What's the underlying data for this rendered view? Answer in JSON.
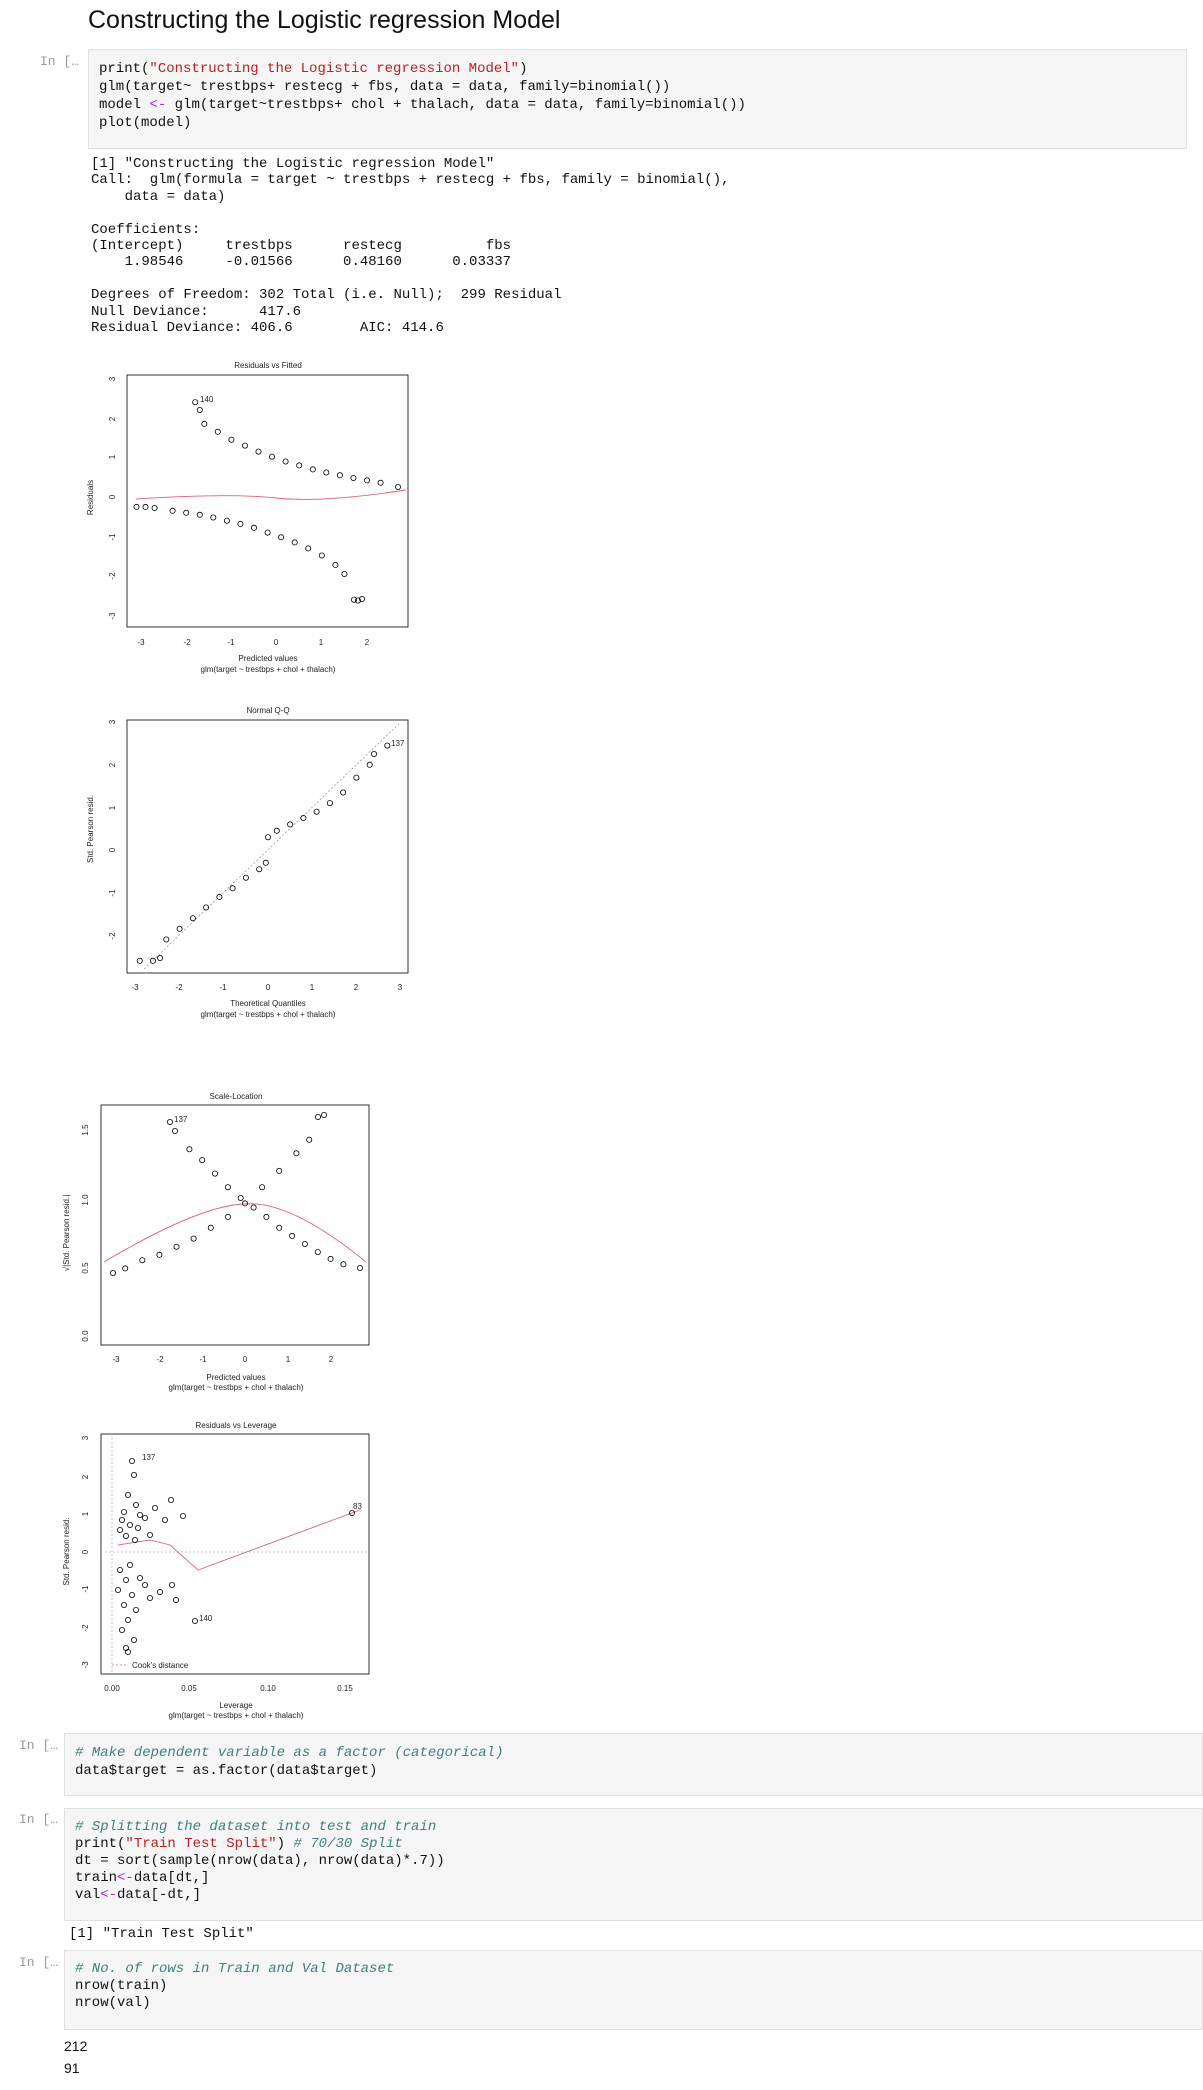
{
  "header": {
    "title": "Constructing the Logistic regression Model"
  },
  "cells": [
    {
      "prompt": "In […",
      "lines": [
        [
          "print(",
          "\"Constructing the Logistic regression Model\"",
          ")"
        ],
        [
          "glm(target~ trestbps+ restecg + fbs, data = data, family=binomial())"
        ],
        [
          "model ",
          "<-",
          " glm(target~trestbps+ chol + thalach, data = data, family=binomial())"
        ],
        [
          "plot(model)"
        ]
      ],
      "output": [
        "[1] \"Constructing the Logistic regression Model\"",
        "Call:  glm(formula = target ~ trestbps + restecg + fbs, family = binomial(),",
        "    data = data)",
        "",
        "Coefficients:",
        "(Intercept)     trestbps      restecg          fbs  ",
        "    1.98546     -0.01566      0.48160      0.03337  ",
        "",
        "Degrees of Freedom: 302 Total (i.e. Null);  299 Residual",
        "Null Deviance:\t    417.6 ",
        "Residual Deviance: 406.6 \tAIC: 414.6"
      ]
    },
    {
      "prompt": "In […",
      "lines": [
        [
          "# Make dependent variable as a factor (categorical)"
        ],
        [
          "data$target = as.factor(data$target)"
        ]
      ],
      "output": []
    },
    {
      "prompt": "In […",
      "lines": [
        [
          "# Splitting the dataset into test and train"
        ],
        [
          "print(",
          "\"Train Test Split\"",
          ") ",
          "# 70/30 Split"
        ],
        [
          "dt = sort(sample(nrow(data), nrow(data)*.7))"
        ],
        [
          "train",
          "<-",
          "data[dt,]"
        ],
        [
          "val",
          "<-",
          "data[-dt,]"
        ]
      ],
      "output": [
        "[1] \"Train Test Split\""
      ]
    },
    {
      "prompt": "In […",
      "lines": [
        [
          "# No. of rows in Train and Val Dataset"
        ],
        [
          "nrow(train)"
        ],
        [
          "nrow(val)"
        ]
      ],
      "output": [
        "212",
        "91"
      ]
    }
  ],
  "plots": [
    {
      "title": "Residuals vs Fitted",
      "xticks": [
        "-3",
        "-2",
        "-1",
        "0",
        "1",
        "2"
      ],
      "yticks": [
        "3",
        "2",
        "1",
        "0",
        "-1",
        "-2",
        "-3"
      ],
      "xlabel": "Predicted values",
      "caption": "glm(target ~ trestbps + chol + thalach)",
      "ylabel": "Residuals",
      "annotations": [
        "140"
      ]
    },
    {
      "title": "Normal Q-Q",
      "xticks": [
        "-3",
        "-2",
        "-1",
        "0",
        "1",
        "2",
        "3"
      ],
      "yticks": [
        "3",
        "2",
        "1",
        "0",
        "-1",
        "-2"
      ],
      "xlabel": "Theoretical Quantiles",
      "caption": "glm(target ~ trestbps + chol + thalach)",
      "ylabel": "Std. Pearson resid.",
      "annotations": [
        "137"
      ]
    },
    {
      "title": "Scale-Location",
      "xticks": [
        "-3",
        "-2",
        "-1",
        "0",
        "1",
        "2"
      ],
      "yticks": [
        "0.0",
        "0.5",
        "1.0",
        "1.5"
      ],
      "xlabel": "Predicted values",
      "caption": "glm(target ~ trestbps + chol + thalach)",
      "ylabel": "√|Std. Pearson resid.|",
      "annotations": [
        "137"
      ]
    },
    {
      "title": "Residuals vs Leverage",
      "xticks": [
        "0.00",
        "0.05",
        "0.10",
        "0.15"
      ],
      "yticks": [
        "3",
        "2",
        "1",
        "0",
        "-1",
        "-2",
        "-3"
      ],
      "xlabel": "Leverage",
      "caption": "glm(target ~ trestbps + chol + thalach)",
      "ylabel": "Std. Pearson resid.",
      "annotations": [
        "137",
        "140",
        "83"
      ],
      "legend": "Cook's distance"
    }
  ]
}
